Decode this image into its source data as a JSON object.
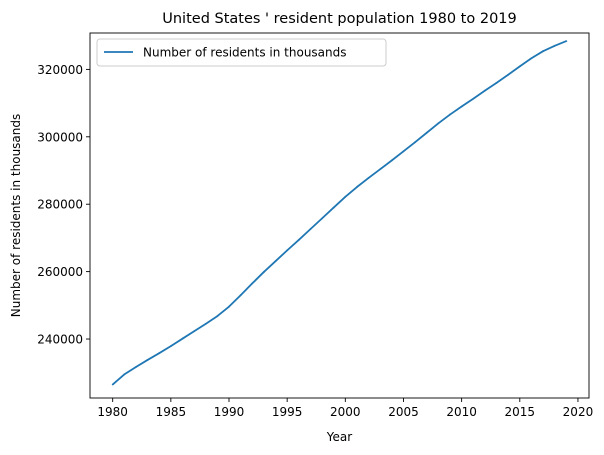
{
  "chart_data": {
    "type": "line",
    "title": "United States ' resident population 1980 to 2019",
    "xlabel": "Year",
    "ylabel": "Number of residents in thousands",
    "xlim": [
      1978.05,
      2020.95
    ],
    "ylim": [
      222500,
      330800
    ],
    "xticks": [
      1980,
      1985,
      1990,
      1995,
      2000,
      2005,
      2010,
      2015,
      2020
    ],
    "yticks": [
      240000,
      260000,
      280000,
      300000,
      320000
    ],
    "grid": false,
    "legend_position": "upper-left",
    "series": [
      {
        "name": "Number of residents in thousands",
        "color": "#1f77b4",
        "x": [
          1980,
          1981,
          1982,
          1983,
          1984,
          1985,
          1986,
          1987,
          1988,
          1989,
          1990,
          1991,
          1992,
          1993,
          1994,
          1995,
          1996,
          1997,
          1998,
          1999,
          2000,
          2001,
          2002,
          2003,
          2004,
          2005,
          2006,
          2007,
          2008,
          2009,
          2010,
          2011,
          2012,
          2013,
          2014,
          2015,
          2016,
          2017,
          2018,
          2019
        ],
        "values": [
          226500,
          229500,
          231700,
          233800,
          235800,
          237900,
          240100,
          242300,
          244500,
          246800,
          249600,
          253000,
          256500,
          259900,
          263100,
          266300,
          269400,
          272600,
          275800,
          279000,
          282200,
          285100,
          287800,
          290400,
          293000,
          295700,
          298400,
          301200,
          304000,
          306600,
          309000,
          311300,
          313700,
          316000,
          318400,
          320900,
          323300,
          325400,
          327000,
          328400
        ]
      }
    ]
  }
}
